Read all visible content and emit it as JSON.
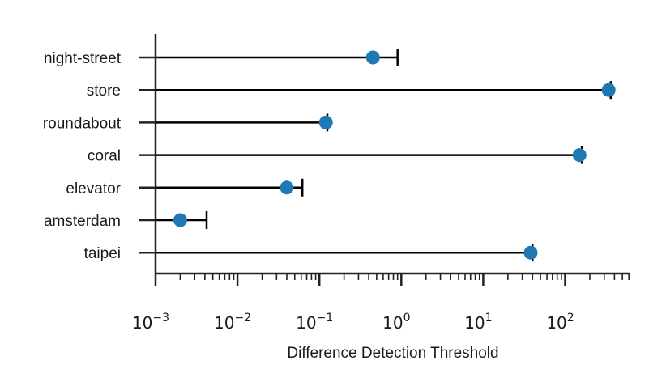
{
  "chart_data": {
    "type": "scatter",
    "orientation": "horizontal",
    "xlabel": "Difference Detection Threshold",
    "xscale": "log",
    "xlim": [
      0.001,
      600
    ],
    "x_tick_labels": [
      {
        "base": "10",
        "exp": "−3",
        "value": 0.001
      },
      {
        "base": "10",
        "exp": "−2",
        "value": 0.01
      },
      {
        "base": "10",
        "exp": "−1",
        "value": 0.1
      },
      {
        "base": "10",
        "exp": "0",
        "value": 1
      },
      {
        "base": "10",
        "exp": "1",
        "value": 10
      },
      {
        "base": "10",
        "exp": "2",
        "value": 100
      }
    ],
    "categories": [
      "night-street",
      "store",
      "roundabout",
      "coral",
      "elevator",
      "amsterdam",
      "taipei"
    ],
    "values": [
      0.45,
      340,
      0.12,
      150,
      0.04,
      0.002,
      38
    ],
    "error_upper": [
      0.9,
      360,
      0.125,
      160,
      0.062,
      0.0042,
      40
    ],
    "marker_color": "#1f77b4",
    "line_color": "#000000",
    "grid": false,
    "legend": "none"
  }
}
